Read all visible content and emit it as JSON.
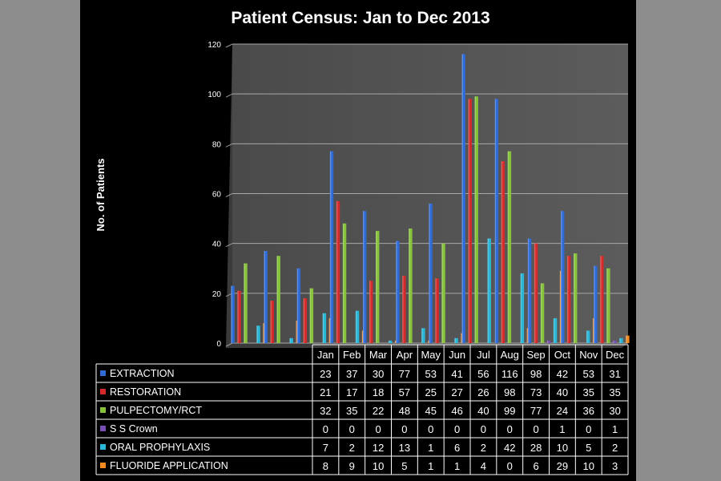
{
  "chart_data": {
    "type": "bar",
    "title": "Patient Census: Jan to Dec 2013",
    "ylabel": "No. of Patients",
    "ylim": [
      0,
      120
    ],
    "yticks": [
      0,
      20,
      40,
      60,
      80,
      100,
      120
    ],
    "grid": true,
    "legend": "data-table-below",
    "categories": [
      "Jan",
      "Feb",
      "Mar",
      "Apr",
      "May",
      "Jun",
      "Jul",
      "Aug",
      "Sep",
      "Oct",
      "Nov",
      "Dec"
    ],
    "series": [
      {
        "name": "EXTRACTION",
        "color": "#2f6bd6",
        "values": [
          23,
          37,
          30,
          77,
          53,
          41,
          56,
          116,
          98,
          42,
          53,
          31
        ]
      },
      {
        "name": "RESTORATION",
        "color": "#d42a2a",
        "values": [
          21,
          17,
          18,
          57,
          25,
          27,
          26,
          98,
          73,
          40,
          35,
          35
        ]
      },
      {
        "name": "PULPECTOMY/RCT",
        "color": "#86c23a",
        "values": [
          32,
          35,
          22,
          48,
          45,
          46,
          40,
          99,
          77,
          24,
          36,
          30
        ]
      },
      {
        "name": "S S Crown",
        "color": "#7a4fb5",
        "values": [
          0,
          0,
          0,
          0,
          0,
          0,
          0,
          0,
          0,
          1,
          0,
          1
        ]
      },
      {
        "name": "ORAL PROPHYLAXIS",
        "color": "#2ab6d6",
        "values": [
          7,
          2,
          12,
          13,
          1,
          6,
          2,
          42,
          28,
          10,
          5,
          2
        ]
      },
      {
        "name": "FLUORIDE APPLICATION",
        "color": "#f28a1f",
        "values": [
          8,
          9,
          10,
          5,
          1,
          1,
          4,
          0,
          6,
          29,
          10,
          3
        ]
      }
    ]
  }
}
